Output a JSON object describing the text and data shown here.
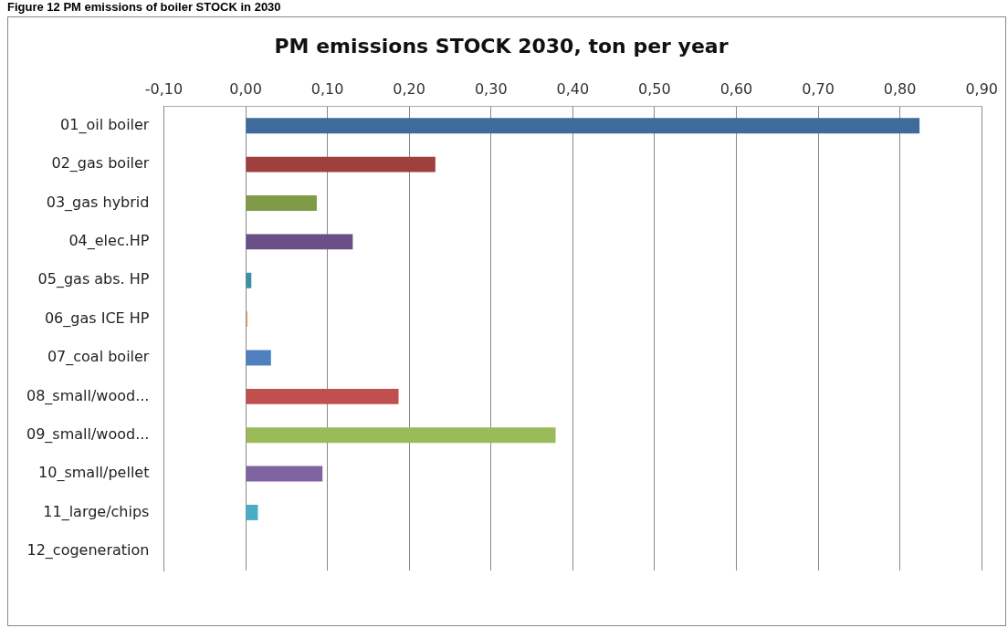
{
  "chart_data": {
    "type": "bar",
    "orientation": "horizontal",
    "title": "PM emissions STOCK 2030, ton per year",
    "annotations": [
      "Figure 12 PM emissions of boiler STOCK in 2030"
    ],
    "categories": [
      "01_oil boiler",
      "02_gas boiler",
      "03_gas hybrid",
      "04_elec.HP",
      "05_gas abs. HP",
      "06_gas ICE HP",
      "07_coal boiler",
      "08_small/wood...",
      "09_small/wood...",
      "10_small/pellet",
      "11_large/chips",
      "12_cogeneration"
    ],
    "values": [
      0.824,
      0.232,
      0.087,
      0.131,
      0.007,
      0.002,
      0.031,
      0.187,
      0.379,
      0.094,
      0.015,
      0
    ],
    "colors": [
      "#3f6a9c",
      "#9e413e",
      "#809b48",
      "#6a5087",
      "#3a91a8",
      "#e0894a",
      "#4e7fbf",
      "#c0504d",
      "#9bbb59",
      "#8064a2",
      "#4bacc6",
      "#f79646"
    ],
    "xlim": [
      -0.1,
      0.9
    ],
    "xticks": [
      {
        "value": -0.1,
        "label": "-0,10"
      },
      {
        "value": 0,
        "label": "0,00"
      },
      {
        "value": 0.1,
        "label": "0,10"
      },
      {
        "value": 0.2,
        "label": "0,20"
      },
      {
        "value": 0.3,
        "label": "0,30"
      },
      {
        "value": 0.4,
        "label": "0,40"
      },
      {
        "value": 0.5,
        "label": "0,50"
      },
      {
        "value": 0.6,
        "label": "0,60"
      },
      {
        "value": 0.7,
        "label": "0,70"
      },
      {
        "value": 0.8,
        "label": "0,80"
      },
      {
        "value": 0.9,
        "label": "0,90"
      }
    ],
    "grid": "x",
    "legend": false
  }
}
